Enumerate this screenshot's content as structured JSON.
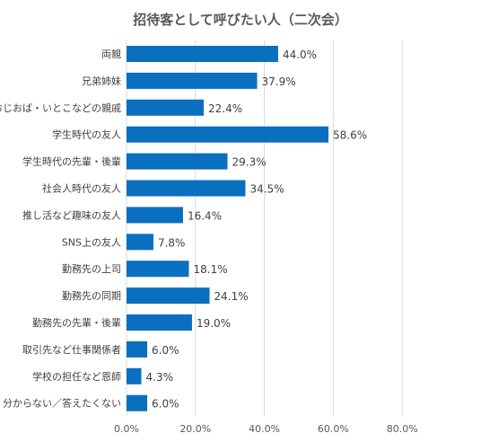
{
  "chart_data": {
    "type": "bar",
    "orientation": "horizontal",
    "title": "招待客として呼びたい人（二次会）",
    "xlabel": "",
    "ylabel": "",
    "xlim": [
      0,
      100
    ],
    "ticks": [
      0,
      20,
      40,
      60,
      80
    ],
    "tick_labels": [
      "0.0%",
      "20.0%",
      "40.0%",
      "60.0%",
      "80.0%"
    ],
    "grid": true,
    "legend": "none",
    "bar_color": "#0b6fc0",
    "categories": [
      "両親",
      "兄弟姉妹",
      "おじおば・いとこなどの親戚",
      "学生時代の友人",
      "学生時代の先輩・後輩",
      "社会人時代の友人",
      "推し活など趣味の友人",
      "SNS上の友人",
      "勤務先の上司",
      "勤務先の同期",
      "勤務先の先輩・後輩",
      "取引先など仕事関係者",
      "学校の担任など恩師",
      "分からない／答えたくない"
    ],
    "values": [
      44.0,
      37.9,
      22.4,
      58.6,
      29.3,
      34.5,
      16.4,
      7.8,
      18.1,
      24.1,
      19.0,
      6.0,
      4.3,
      6.0
    ],
    "value_labels": [
      "44.0%",
      "37.9%",
      "22.4%",
      "58.6%",
      "29.3%",
      "34.5%",
      "16.4%",
      "7.8%",
      "18.1%",
      "24.1%",
      "19.0%",
      "6.0%",
      "4.3%",
      "6.0%"
    ]
  }
}
